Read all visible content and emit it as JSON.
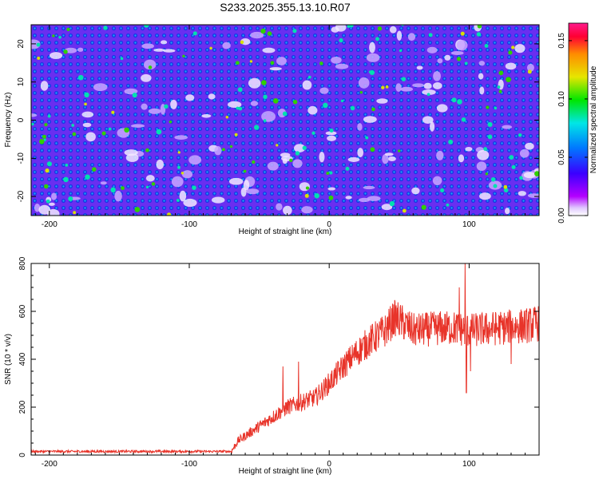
{
  "title": "S233.2025.355.13.10.R07",
  "chart_data": [
    {
      "type": "heatmap",
      "title": "S233.2025.355.13.10.R07",
      "xlabel": "Height of straight line (km)",
      "ylabel": "Frequency (Hz)",
      "xlim": [
        -213,
        150
      ],
      "ylim": [
        -25,
        25
      ],
      "xticks": [
        -200,
        -100,
        0,
        100
      ],
      "yticks": [
        -20,
        -10,
        0,
        10,
        20
      ],
      "colorbar": {
        "label": "Normalized spectral amplitude",
        "range": [
          0,
          0.165
        ],
        "ticks": [
          "0.00",
          "0.05",
          "0.10",
          "0.15"
        ],
        "colors": [
          "#ffffff",
          "#b300ff",
          "#3a00ff",
          "#0077ff",
          "#00e6e6",
          "#00e600",
          "#e6e600",
          "#ff8c00",
          "#ff0033",
          "#ff1a8c"
        ]
      },
      "description_values": {
        "typical_amplitude": 0.03,
        "peak_amplitude": 0.09
      }
    },
    {
      "type": "line",
      "xlabel": "Height of straight line (km)",
      "ylabel": "SNR (10 * v/v)",
      "xlim": [
        -213,
        150
      ],
      "ylim": [
        0,
        800
      ],
      "xticks": [
        -200,
        -100,
        0,
        100
      ],
      "yticks": [
        0,
        200,
        400,
        600,
        800
      ],
      "line_color": "#e8342a",
      "series": [
        {
          "name": "SNR",
          "trend": [
            {
              "x": -213,
              "y": 15
            },
            {
              "x": -70,
              "y": 15
            },
            {
              "x": -65,
              "y": 60
            },
            {
              "x": -50,
              "y": 120
            },
            {
              "x": -40,
              "y": 160
            },
            {
              "x": -30,
              "y": 200
            },
            {
              "x": -10,
              "y": 240
            },
            {
              "x": 0,
              "y": 300
            },
            {
              "x": 10,
              "y": 370
            },
            {
              "x": 20,
              "y": 430
            },
            {
              "x": 30,
              "y": 480
            },
            {
              "x": 40,
              "y": 520
            },
            {
              "x": 47,
              "y": 575
            },
            {
              "x": 60,
              "y": 520
            },
            {
              "x": 80,
              "y": 530
            },
            {
              "x": 90,
              "y": 530
            },
            {
              "x": 100,
              "y": 520
            },
            {
              "x": 120,
              "y": 530
            },
            {
              "x": 140,
              "y": 540
            },
            {
              "x": 150,
              "y": 550
            }
          ],
          "spikes": [
            {
              "x": 97,
              "y": 800
            },
            {
              "x": 98,
              "y": 260
            },
            {
              "x": 93,
              "y": 700
            },
            {
              "x": 101,
              "y": 350
            },
            {
              "x": -33,
              "y": 370
            },
            {
              "x": -22,
              "y": 390
            },
            {
              "x": 47,
              "y": 640
            },
            {
              "x": 130,
              "y": 380
            }
          ]
        }
      ]
    }
  ]
}
